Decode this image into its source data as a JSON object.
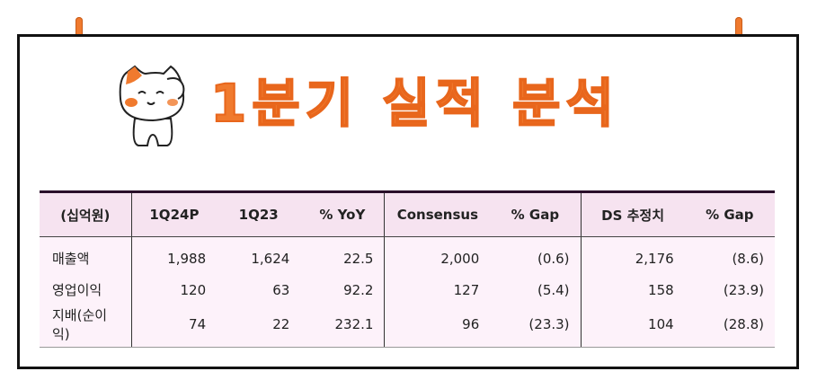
{
  "title": "1분기 실적 분석",
  "table": {
    "headers": [
      "(십억원)",
      "1Q24P",
      "1Q23",
      "% YoY",
      "Consensus",
      "% Gap",
      "DS 추정치",
      "% Gap"
    ],
    "rows": [
      [
        "매출액",
        "1,988",
        "1,624",
        "22.5",
        "2,000",
        "(0.6)",
        "2,176",
        "(8.6)"
      ],
      [
        "영업이익",
        "120",
        "63",
        "92.2",
        "127",
        "(5.4)",
        "158",
        "(23.9)"
      ],
      [
        "지배(순이익)",
        "74",
        "22",
        "232.1",
        "96",
        "(23.3)",
        "104",
        "(28.8)"
      ]
    ]
  },
  "colors": {
    "accent": "#f07a2e",
    "header_bg": "#f6e3f0",
    "body_bg": "#fdf2fa",
    "border": "#111111"
  },
  "icons": [
    "pin-icon",
    "cat-mascot-icon"
  ]
}
